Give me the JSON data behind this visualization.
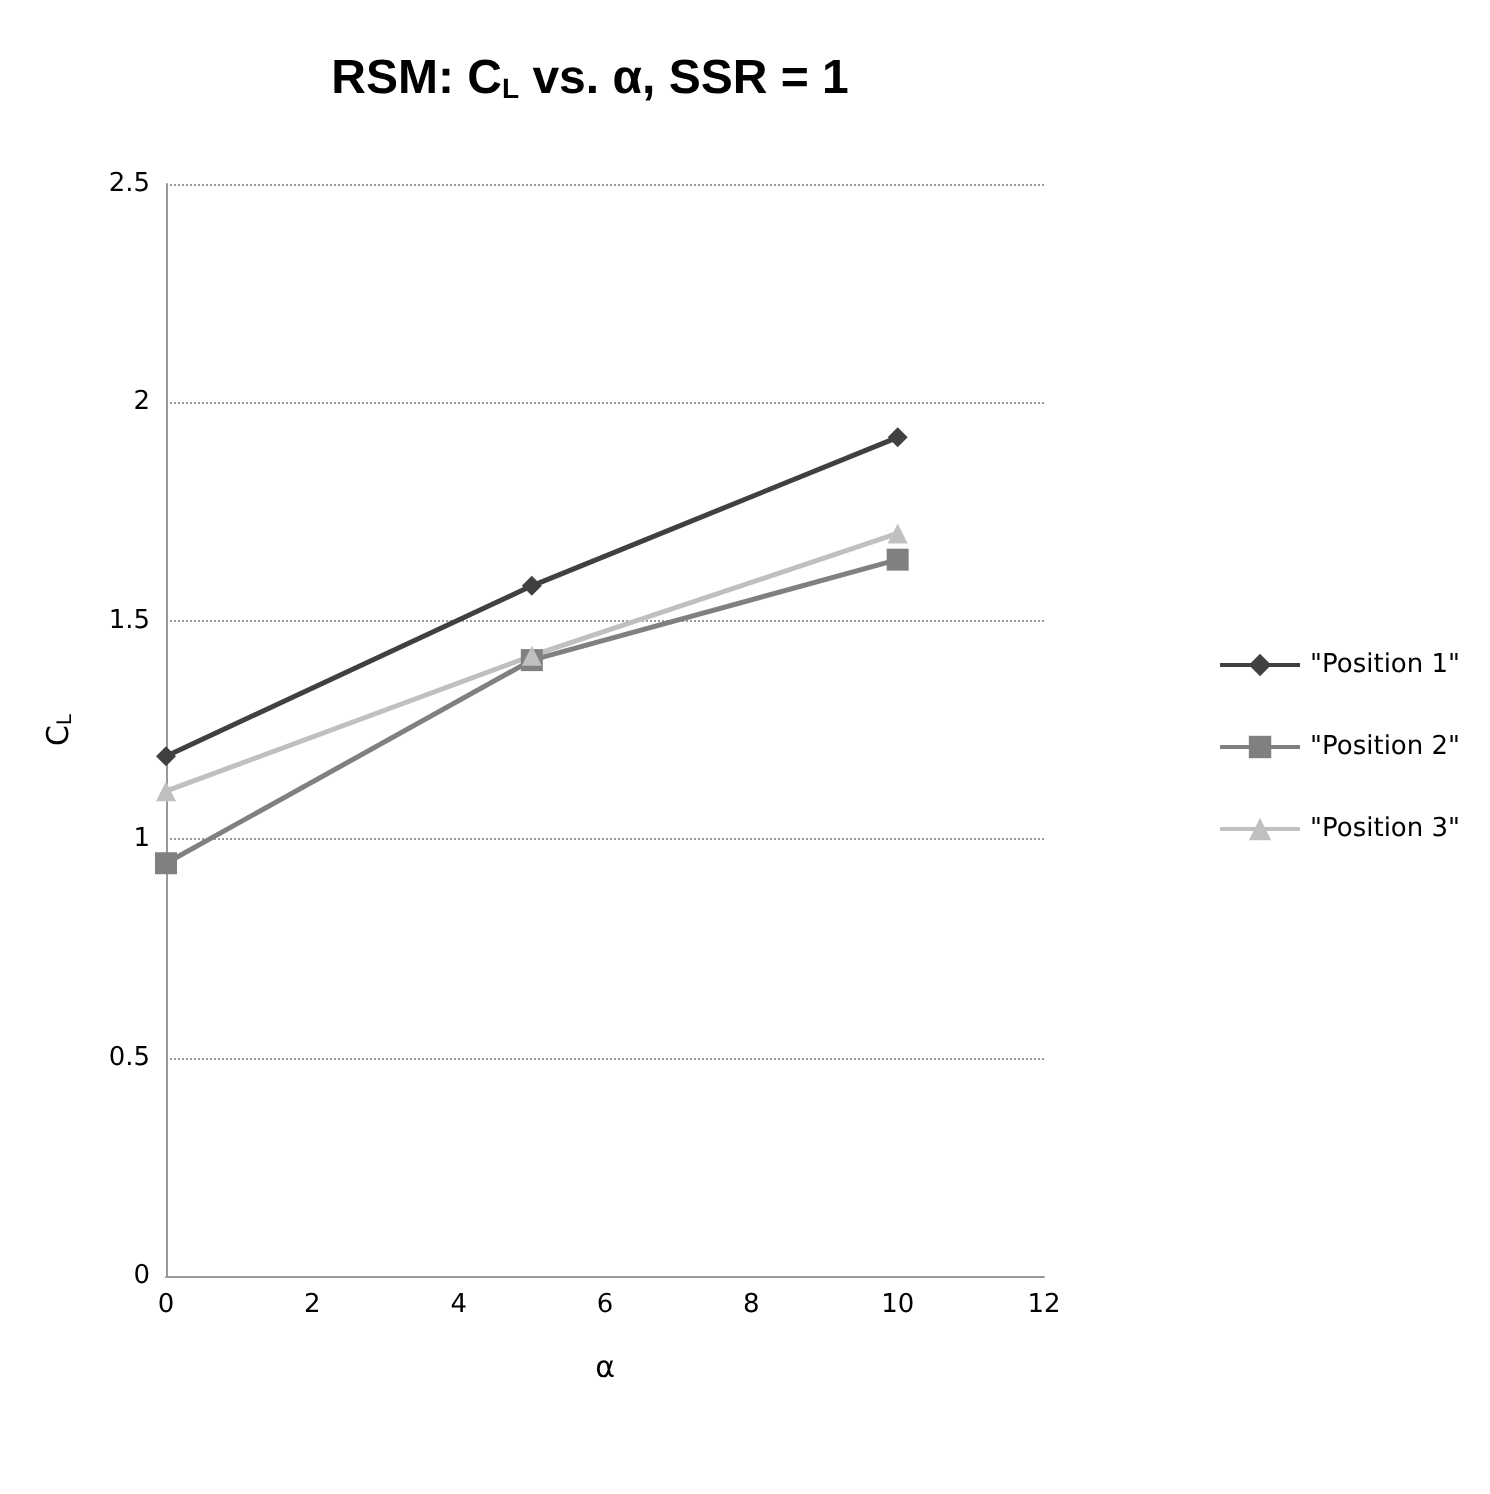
{
  "chart_data": {
    "type": "line",
    "title": "RSM: C$_{L}$ vs. α, SSR = 1",
    "xlabel": "α",
    "ylabel": "C$_{L}$",
    "x": [
      0,
      5,
      10
    ],
    "series": [
      {
        "name": "\"Position 1\"",
        "color": "#404040",
        "marker": "diamond",
        "values": [
          1.19,
          1.58,
          1.92
        ]
      },
      {
        "name": "\"Position 2\"",
        "color": "#808080",
        "marker": "square",
        "values": [
          0.945,
          1.41,
          1.64
        ]
      },
      {
        "name": "\"Position 3\"",
        "color": "#c0c0c0",
        "marker": "triangle",
        "values": [
          1.11,
          1.42,
          1.7
        ]
      }
    ],
    "xlim": [
      0,
      12
    ],
    "xticks": [
      0,
      2,
      4,
      6,
      8,
      10,
      12
    ],
    "ylim": [
      0,
      2.5
    ],
    "yticks": [
      0,
      0.5,
      1,
      1.5,
      2,
      2.5
    ],
    "grid": "y",
    "legend": "right",
    "line_style": "solid"
  }
}
